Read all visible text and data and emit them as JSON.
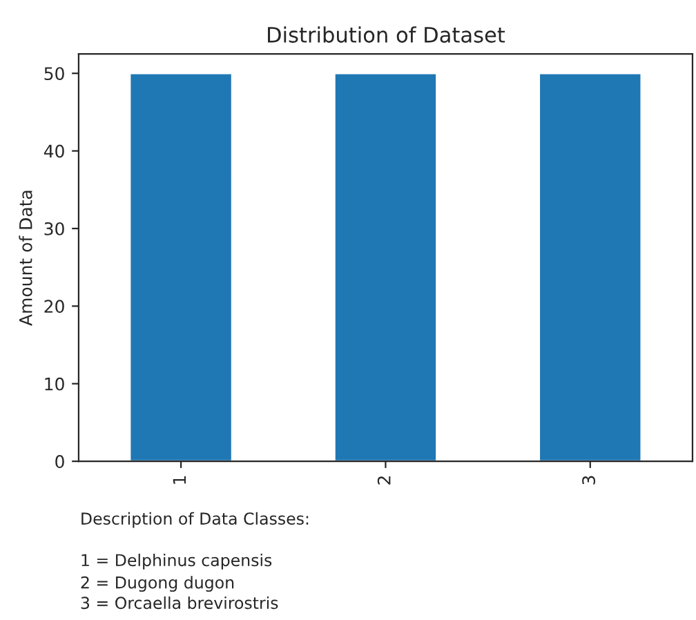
{
  "chart_data": {
    "type": "bar",
    "title": "Distribution of Dataset",
    "ylabel": "Amount of Data",
    "categories": [
      "1",
      "2",
      "3"
    ],
    "series": [
      {
        "color": "#1f77b4",
        "values": [
          50,
          50,
          50
        ]
      }
    ],
    "ylim": [
      0,
      52.5
    ],
    "yticks": [
      0,
      10,
      20,
      30,
      40,
      50
    ],
    "grid": false,
    "legend": false,
    "annotations": [
      "Description of Data Classes:",
      "1 = Delphinus capensis",
      "2 = Dugong dugon",
      "3 = Orcaella brevirostris"
    ]
  }
}
